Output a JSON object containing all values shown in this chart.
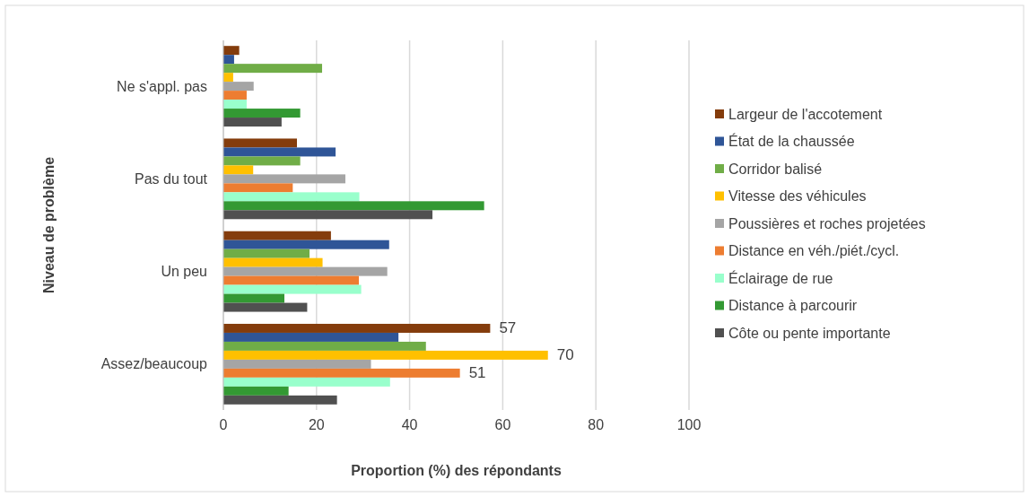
{
  "chart_data": {
    "type": "bar",
    "orientation": "horizontal",
    "xlabel": "Proportion (%) des répondants",
    "ylabel": "Niveau de problème",
    "categories": [
      "Ne s'appl. pas",
      "Pas du tout",
      "Un peu",
      "Assez/beaucoup"
    ],
    "series": [
      {
        "name": "Largeur de l'accotement",
        "color": "#843c0c",
        "values": [
          3.4,
          15.8,
          23.1,
          57.3
        ],
        "value_labels": [
          null,
          null,
          null,
          "57"
        ]
      },
      {
        "name": "État de la chaussée",
        "color": "#2f5597",
        "values": [
          2.3,
          24.1,
          35.6,
          37.6
        ]
      },
      {
        "name": "Corridor balisé",
        "color": "#70ad47",
        "values": [
          21.2,
          16.5,
          18.5,
          43.5
        ]
      },
      {
        "name": "Vitesse des véhicules",
        "color": "#ffc000",
        "values": [
          2.1,
          6.4,
          21.3,
          69.7
        ],
        "value_labels": [
          null,
          null,
          null,
          "70"
        ]
      },
      {
        "name": "Poussières et roches projetées",
        "color": "#a5a5a5",
        "values": [
          6.5,
          26.2,
          35.2,
          31.7
        ]
      },
      {
        "name": "Distance en véh./piét./cycl.",
        "color": "#ed7d31",
        "values": [
          5.0,
          14.9,
          29.1,
          50.8
        ],
        "value_labels": [
          null,
          null,
          null,
          "51"
        ]
      },
      {
        "name": "Éclairage de rue",
        "color": "#99ffcc",
        "values": [
          5.0,
          29.2,
          29.6,
          35.8
        ]
      },
      {
        "name": "Distance à parcourir",
        "color": "#339933",
        "values": [
          16.5,
          56.0,
          13.1,
          14.0
        ]
      },
      {
        "name": "Côte ou pente importante",
        "color": "#505050",
        "values": [
          12.5,
          44.9,
          18.0,
          24.4
        ]
      }
    ],
    "xlim": [
      0,
      100
    ],
    "xticks": [
      0,
      20,
      40,
      60,
      80,
      100
    ],
    "grid": "x",
    "legend": "right"
  }
}
